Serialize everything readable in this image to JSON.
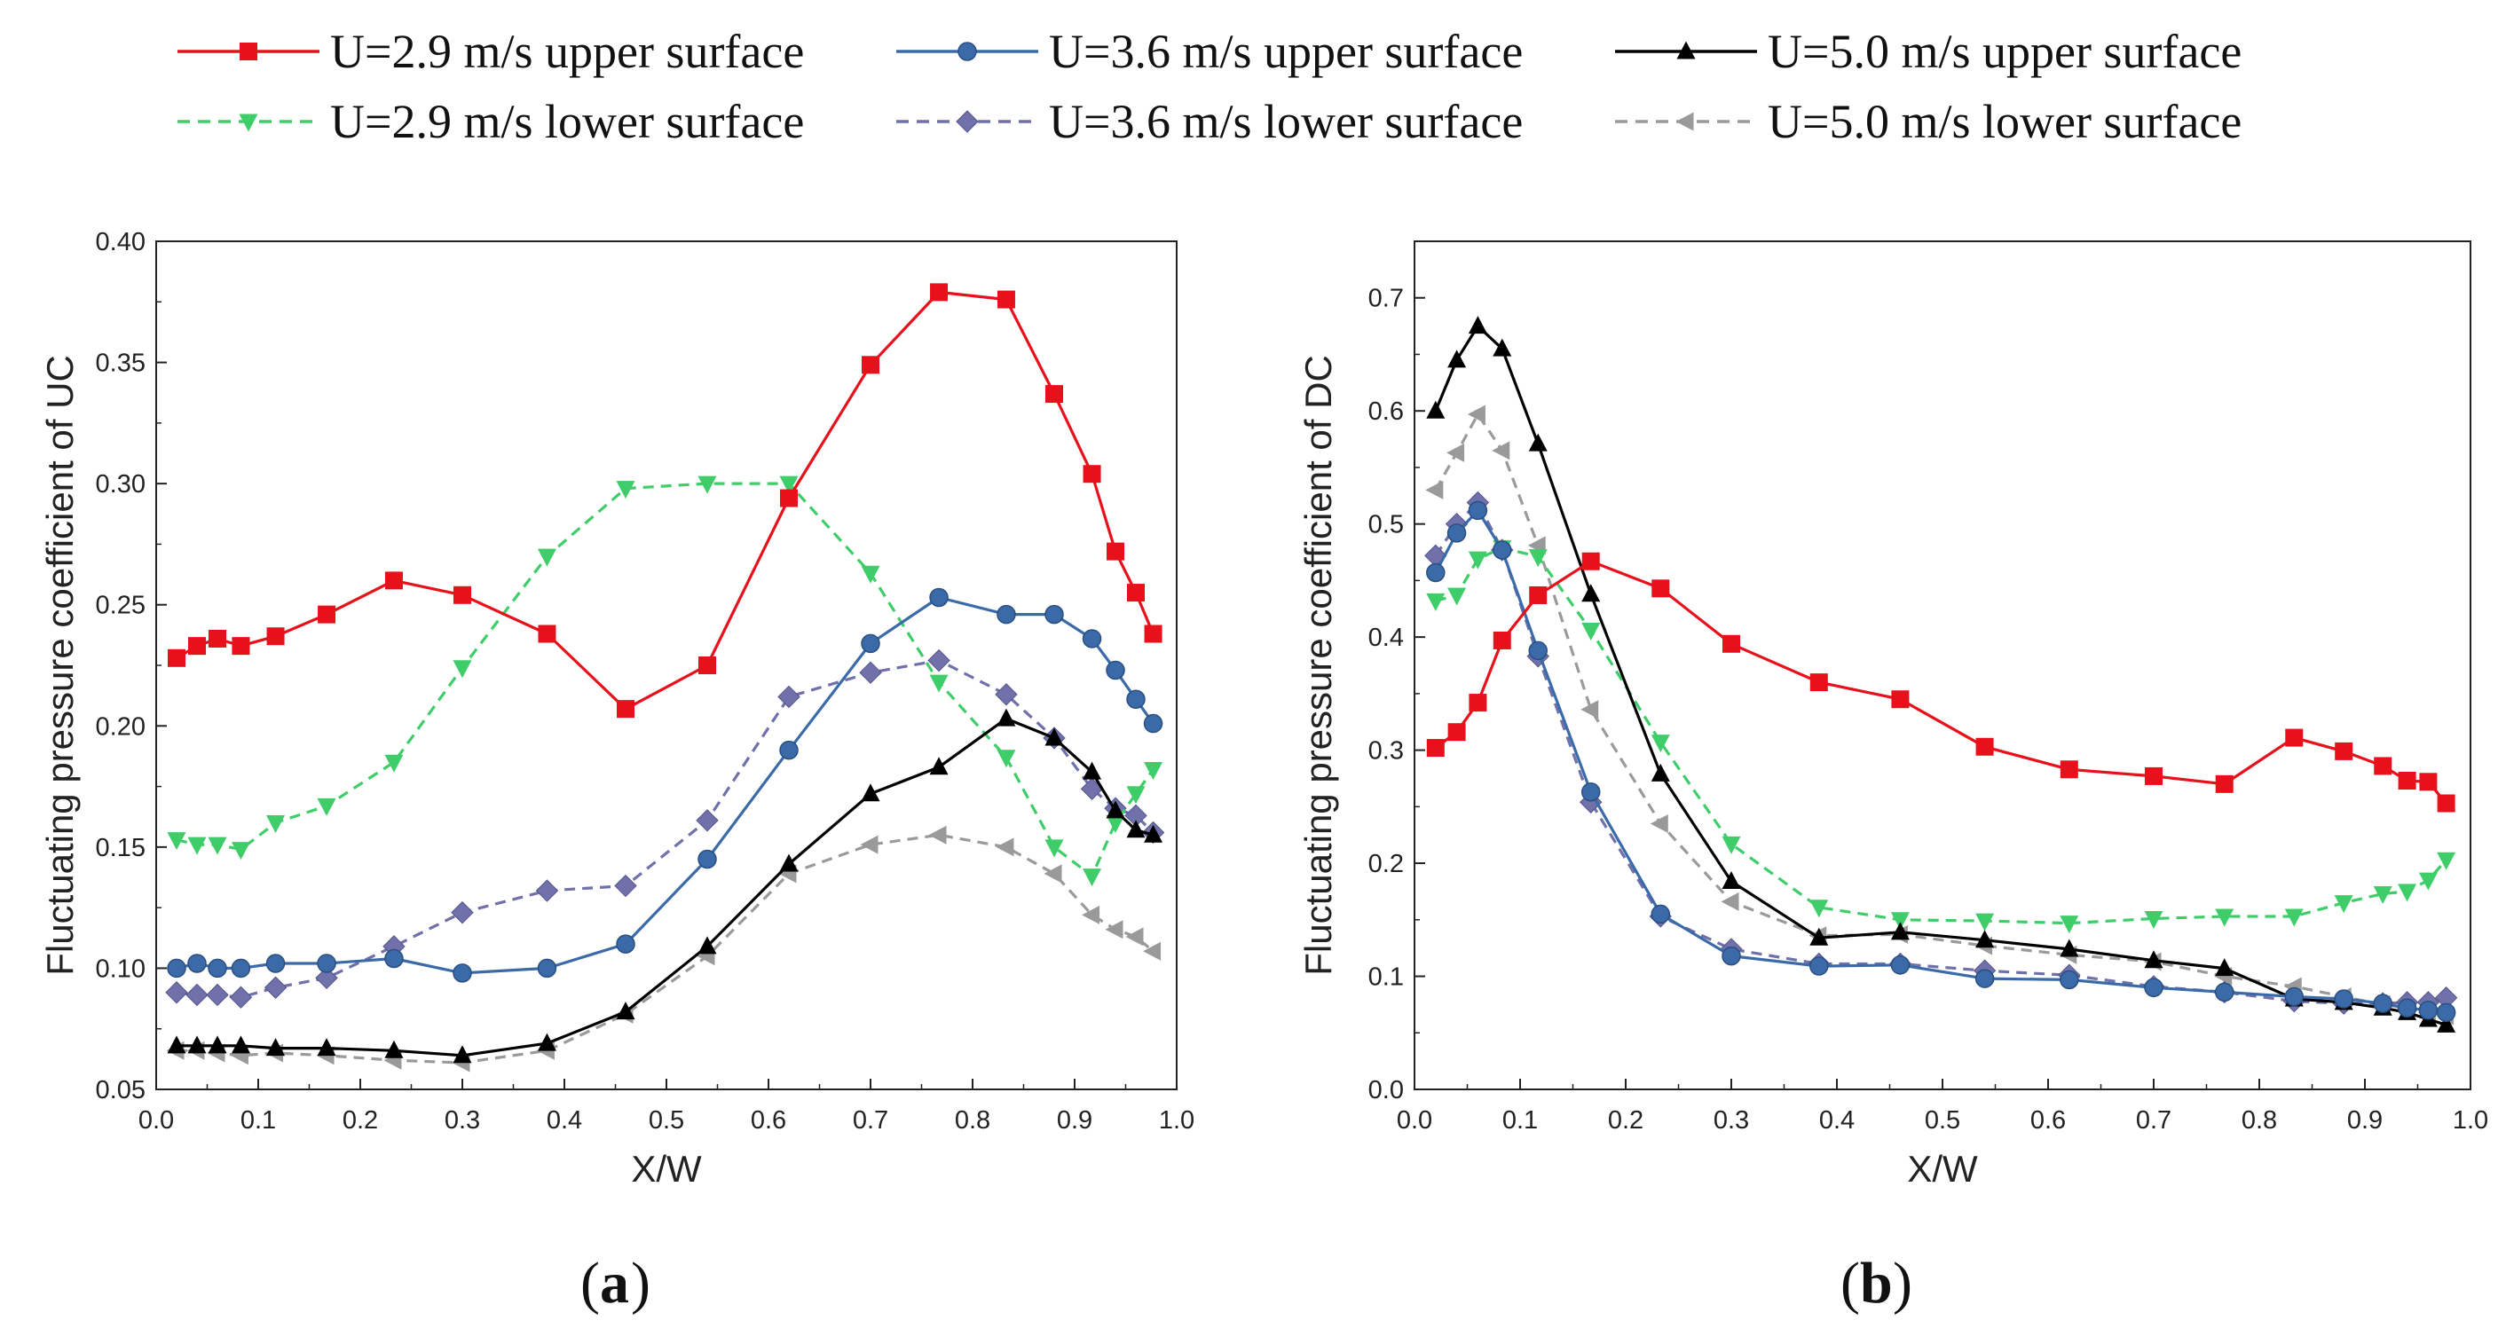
{
  "legend": [
    {
      "label": "U=2.9 m/s upper surface",
      "series_key": "u29_upper"
    },
    {
      "label": "U=3.6 m/s upper surface",
      "series_key": "u36_upper"
    },
    {
      "label": "U=5.0 m/s upper surface",
      "series_key": "u50_upper"
    },
    {
      "label": "U=2.9 m/s lower surface",
      "series_key": "u29_lower"
    },
    {
      "label": "U=3.6 m/s lower surface",
      "series_key": "u36_lower"
    },
    {
      "label": "U=5.0 m/s lower surface",
      "series_key": "u50_lower"
    }
  ],
  "styles": {
    "u29_upper": {
      "color": "#e8101b",
      "marker": "square",
      "dash": false
    },
    "u36_upper": {
      "color": "#3a6aa8",
      "marker": "circle",
      "dash": false
    },
    "u50_upper": {
      "color": "#000000",
      "marker": "triangle-up",
      "dash": false
    },
    "u29_lower": {
      "color": "#3fcd6a",
      "marker": "triangle-down",
      "dash": true
    },
    "u36_lower": {
      "color": "#7070aa",
      "marker": "diamond",
      "dash": true
    },
    "u50_lower": {
      "color": "#9a9a9a",
      "marker": "triangle-left",
      "dash": true
    }
  },
  "chart_data": [
    {
      "type": "line",
      "panel_label": "(a)",
      "panel_letter": "a",
      "xlabel": "X/W",
      "ylabel": "Fluctuating pressure coefficient of UC",
      "xlim": [
        0.0,
        1.0
      ],
      "ylim": [
        0.05,
        0.4
      ],
      "xticks": [
        "0.0",
        "0.1",
        "0.2",
        "0.3",
        "0.4",
        "0.5",
        "0.6",
        "0.7",
        "0.8",
        "0.9",
        "1.0"
      ],
      "yticks": [
        "0.05",
        "0.10",
        "0.15",
        "0.20",
        "0.25",
        "0.30",
        "0.35",
        "0.40"
      ],
      "series": [
        {
          "key": "u29_upper",
          "name": "U=2.9 m/s upper surface",
          "x": [
            0.02,
            0.04,
            0.06,
            0.083,
            0.117,
            0.167,
            0.233,
            0.3,
            0.383,
            0.46,
            0.54,
            0.62,
            0.7,
            0.767,
            0.833,
            0.88,
            0.917,
            0.94,
            0.96,
            0.977
          ],
          "y": [
            0.228,
            0.233,
            0.236,
            0.233,
            0.237,
            0.246,
            0.26,
            0.254,
            0.238,
            0.207,
            0.225,
            0.294,
            0.349,
            0.379,
            0.376,
            0.337,
            0.304,
            0.272,
            0.255,
            0.238
          ]
        },
        {
          "key": "u36_upper",
          "name": "U=3.6 m/s upper surface",
          "x": [
            0.02,
            0.04,
            0.06,
            0.083,
            0.117,
            0.167,
            0.233,
            0.3,
            0.383,
            0.46,
            0.54,
            0.62,
            0.7,
            0.767,
            0.833,
            0.88,
            0.917,
            0.94,
            0.96,
            0.977
          ],
          "y": [
            0.1,
            0.102,
            0.1,
            0.1,
            0.102,
            0.102,
            0.104,
            0.098,
            0.1,
            0.11,
            0.145,
            0.19,
            0.234,
            0.253,
            0.246,
            0.246,
            0.236,
            0.223,
            0.211,
            0.201
          ]
        },
        {
          "key": "u50_upper",
          "name": "U=5.0 m/s upper surface",
          "x": [
            0.02,
            0.04,
            0.06,
            0.083,
            0.117,
            0.167,
            0.233,
            0.3,
            0.383,
            0.46,
            0.54,
            0.62,
            0.7,
            0.767,
            0.833,
            0.88,
            0.917,
            0.94,
            0.96,
            0.977
          ],
          "y": [
            0.068,
            0.068,
            0.068,
            0.068,
            0.067,
            0.067,
            0.066,
            0.064,
            0.069,
            0.082,
            0.109,
            0.143,
            0.172,
            0.183,
            0.203,
            0.195,
            0.181,
            0.165,
            0.157,
            0.155
          ]
        },
        {
          "key": "u29_lower",
          "name": "U=2.9 m/s lower surface",
          "x": [
            0.02,
            0.04,
            0.06,
            0.083,
            0.117,
            0.167,
            0.233,
            0.3,
            0.383,
            0.46,
            0.54,
            0.62,
            0.7,
            0.767,
            0.833,
            0.88,
            0.917,
            0.94,
            0.96,
            0.977
          ],
          "y": [
            0.153,
            0.151,
            0.151,
            0.149,
            0.16,
            0.167,
            0.185,
            0.224,
            0.27,
            0.298,
            0.3,
            0.3,
            0.263,
            0.218,
            0.187,
            0.15,
            0.138,
            0.16,
            0.172,
            0.182
          ]
        },
        {
          "key": "u36_lower",
          "name": "U=3.6 m/s lower surface",
          "x": [
            0.02,
            0.04,
            0.06,
            0.083,
            0.117,
            0.167,
            0.233,
            0.3,
            0.383,
            0.46,
            0.54,
            0.62,
            0.7,
            0.767,
            0.833,
            0.88,
            0.917,
            0.94,
            0.96,
            0.977
          ],
          "y": [
            0.09,
            0.089,
            0.089,
            0.088,
            0.092,
            0.096,
            0.109,
            0.123,
            0.132,
            0.134,
            0.161,
            0.212,
            0.222,
            0.227,
            0.213,
            0.195,
            0.174,
            0.166,
            0.163,
            0.156
          ]
        },
        {
          "key": "u50_lower",
          "name": "U=5.0 m/s lower surface",
          "x": [
            0.02,
            0.04,
            0.06,
            0.083,
            0.117,
            0.167,
            0.233,
            0.3,
            0.383,
            0.46,
            0.54,
            0.62,
            0.7,
            0.767,
            0.833,
            0.88,
            0.917,
            0.94,
            0.96,
            0.977
          ],
          "y": [
            0.066,
            0.066,
            0.065,
            0.064,
            0.065,
            0.064,
            0.062,
            0.061,
            0.066,
            0.081,
            0.105,
            0.139,
            0.151,
            0.155,
            0.15,
            0.139,
            0.122,
            0.116,
            0.113,
            0.107
          ]
        }
      ]
    },
    {
      "type": "line",
      "panel_label": "(b)",
      "panel_letter": "b",
      "xlabel": "X/W",
      "ylabel": "Fluctuating pressure coefficient of DC",
      "xlim": [
        0.0,
        1.0
      ],
      "ylim": [
        0.0,
        0.75
      ],
      "xticks": [
        "0.0",
        "0.1",
        "0.2",
        "0.3",
        "0.4",
        "0.5",
        "0.6",
        "0.7",
        "0.8",
        "0.9",
        "1.0"
      ],
      "yticks": [
        "0.0",
        "0.1",
        "0.2",
        "0.3",
        "0.4",
        "0.5",
        "0.6",
        "0.7"
      ],
      "series": [
        {
          "key": "u29_upper",
          "name": "U=2.9 m/s upper surface",
          "x": [
            0.02,
            0.04,
            0.06,
            0.083,
            0.117,
            0.167,
            0.233,
            0.3,
            0.383,
            0.46,
            0.54,
            0.62,
            0.7,
            0.767,
            0.833,
            0.88,
            0.917,
            0.94,
            0.96,
            0.977
          ],
          "y": [
            0.302,
            0.316,
            0.342,
            0.397,
            0.437,
            0.467,
            0.443,
            0.394,
            0.36,
            0.345,
            0.303,
            0.283,
            0.277,
            0.27,
            0.311,
            0.299,
            0.286,
            0.273,
            0.272,
            0.253
          ]
        },
        {
          "key": "u36_upper",
          "name": "U=3.6 m/s upper surface",
          "x": [
            0.02,
            0.04,
            0.06,
            0.083,
            0.117,
            0.167,
            0.233,
            0.3,
            0.383,
            0.46,
            0.54,
            0.62,
            0.7,
            0.767,
            0.833,
            0.88,
            0.917,
            0.94,
            0.96,
            0.977
          ],
          "y": [
            0.457,
            0.492,
            0.512,
            0.477,
            0.388,
            0.263,
            0.155,
            0.118,
            0.109,
            0.11,
            0.098,
            0.097,
            0.09,
            0.086,
            0.082,
            0.08,
            0.076,
            0.072,
            0.07,
            0.068
          ]
        },
        {
          "key": "u50_upper",
          "name": "U=5.0 m/s upper surface",
          "x": [
            0.02,
            0.04,
            0.06,
            0.083,
            0.117,
            0.167,
            0.233,
            0.3,
            0.383,
            0.46,
            0.54,
            0.62,
            0.7,
            0.767,
            0.833,
            0.88,
            0.917,
            0.94,
            0.96,
            0.977
          ],
          "y": [
            0.6,
            0.645,
            0.675,
            0.655,
            0.571,
            0.438,
            0.279,
            0.184,
            0.134,
            0.139,
            0.132,
            0.124,
            0.114,
            0.107,
            0.08,
            0.077,
            0.072,
            0.068,
            0.062,
            0.057
          ]
        },
        {
          "key": "u29_lower",
          "name": "U=2.9 m/s lower surface",
          "x": [
            0.02,
            0.04,
            0.06,
            0.083,
            0.117,
            0.167,
            0.233,
            0.3,
            0.383,
            0.46,
            0.54,
            0.62,
            0.7,
            0.767,
            0.833,
            0.88,
            0.917,
            0.94,
            0.96,
            0.977
          ],
          "y": [
            0.432,
            0.437,
            0.469,
            0.479,
            0.471,
            0.406,
            0.307,
            0.217,
            0.161,
            0.15,
            0.149,
            0.147,
            0.151,
            0.153,
            0.153,
            0.165,
            0.173,
            0.175,
            0.185,
            0.203
          ]
        },
        {
          "key": "u36_lower",
          "name": "U=3.6 m/s lower surface",
          "x": [
            0.02,
            0.04,
            0.06,
            0.083,
            0.117,
            0.167,
            0.233,
            0.3,
            0.383,
            0.46,
            0.54,
            0.62,
            0.7,
            0.767,
            0.833,
            0.88,
            0.917,
            0.94,
            0.96,
            0.977
          ],
          "y": [
            0.472,
            0.5,
            0.519,
            0.477,
            0.383,
            0.254,
            0.153,
            0.124,
            0.111,
            0.111,
            0.105,
            0.101,
            0.091,
            0.086,
            0.078,
            0.076,
            0.076,
            0.077,
            0.077,
            0.081
          ]
        },
        {
          "key": "u50_lower",
          "name": "U=5.0 m/s lower surface",
          "x": [
            0.02,
            0.04,
            0.06,
            0.083,
            0.117,
            0.167,
            0.233,
            0.3,
            0.383,
            0.46,
            0.54,
            0.62,
            0.7,
            0.767,
            0.833,
            0.88,
            0.917,
            0.94,
            0.96,
            0.977
          ],
          "y": [
            0.53,
            0.563,
            0.597,
            0.565,
            0.481,
            0.336,
            0.235,
            0.166,
            0.136,
            0.137,
            0.127,
            0.119,
            0.113,
            0.1,
            0.091,
            0.082,
            0.075,
            0.072,
            0.068,
            0.065
          ]
        }
      ]
    }
  ]
}
